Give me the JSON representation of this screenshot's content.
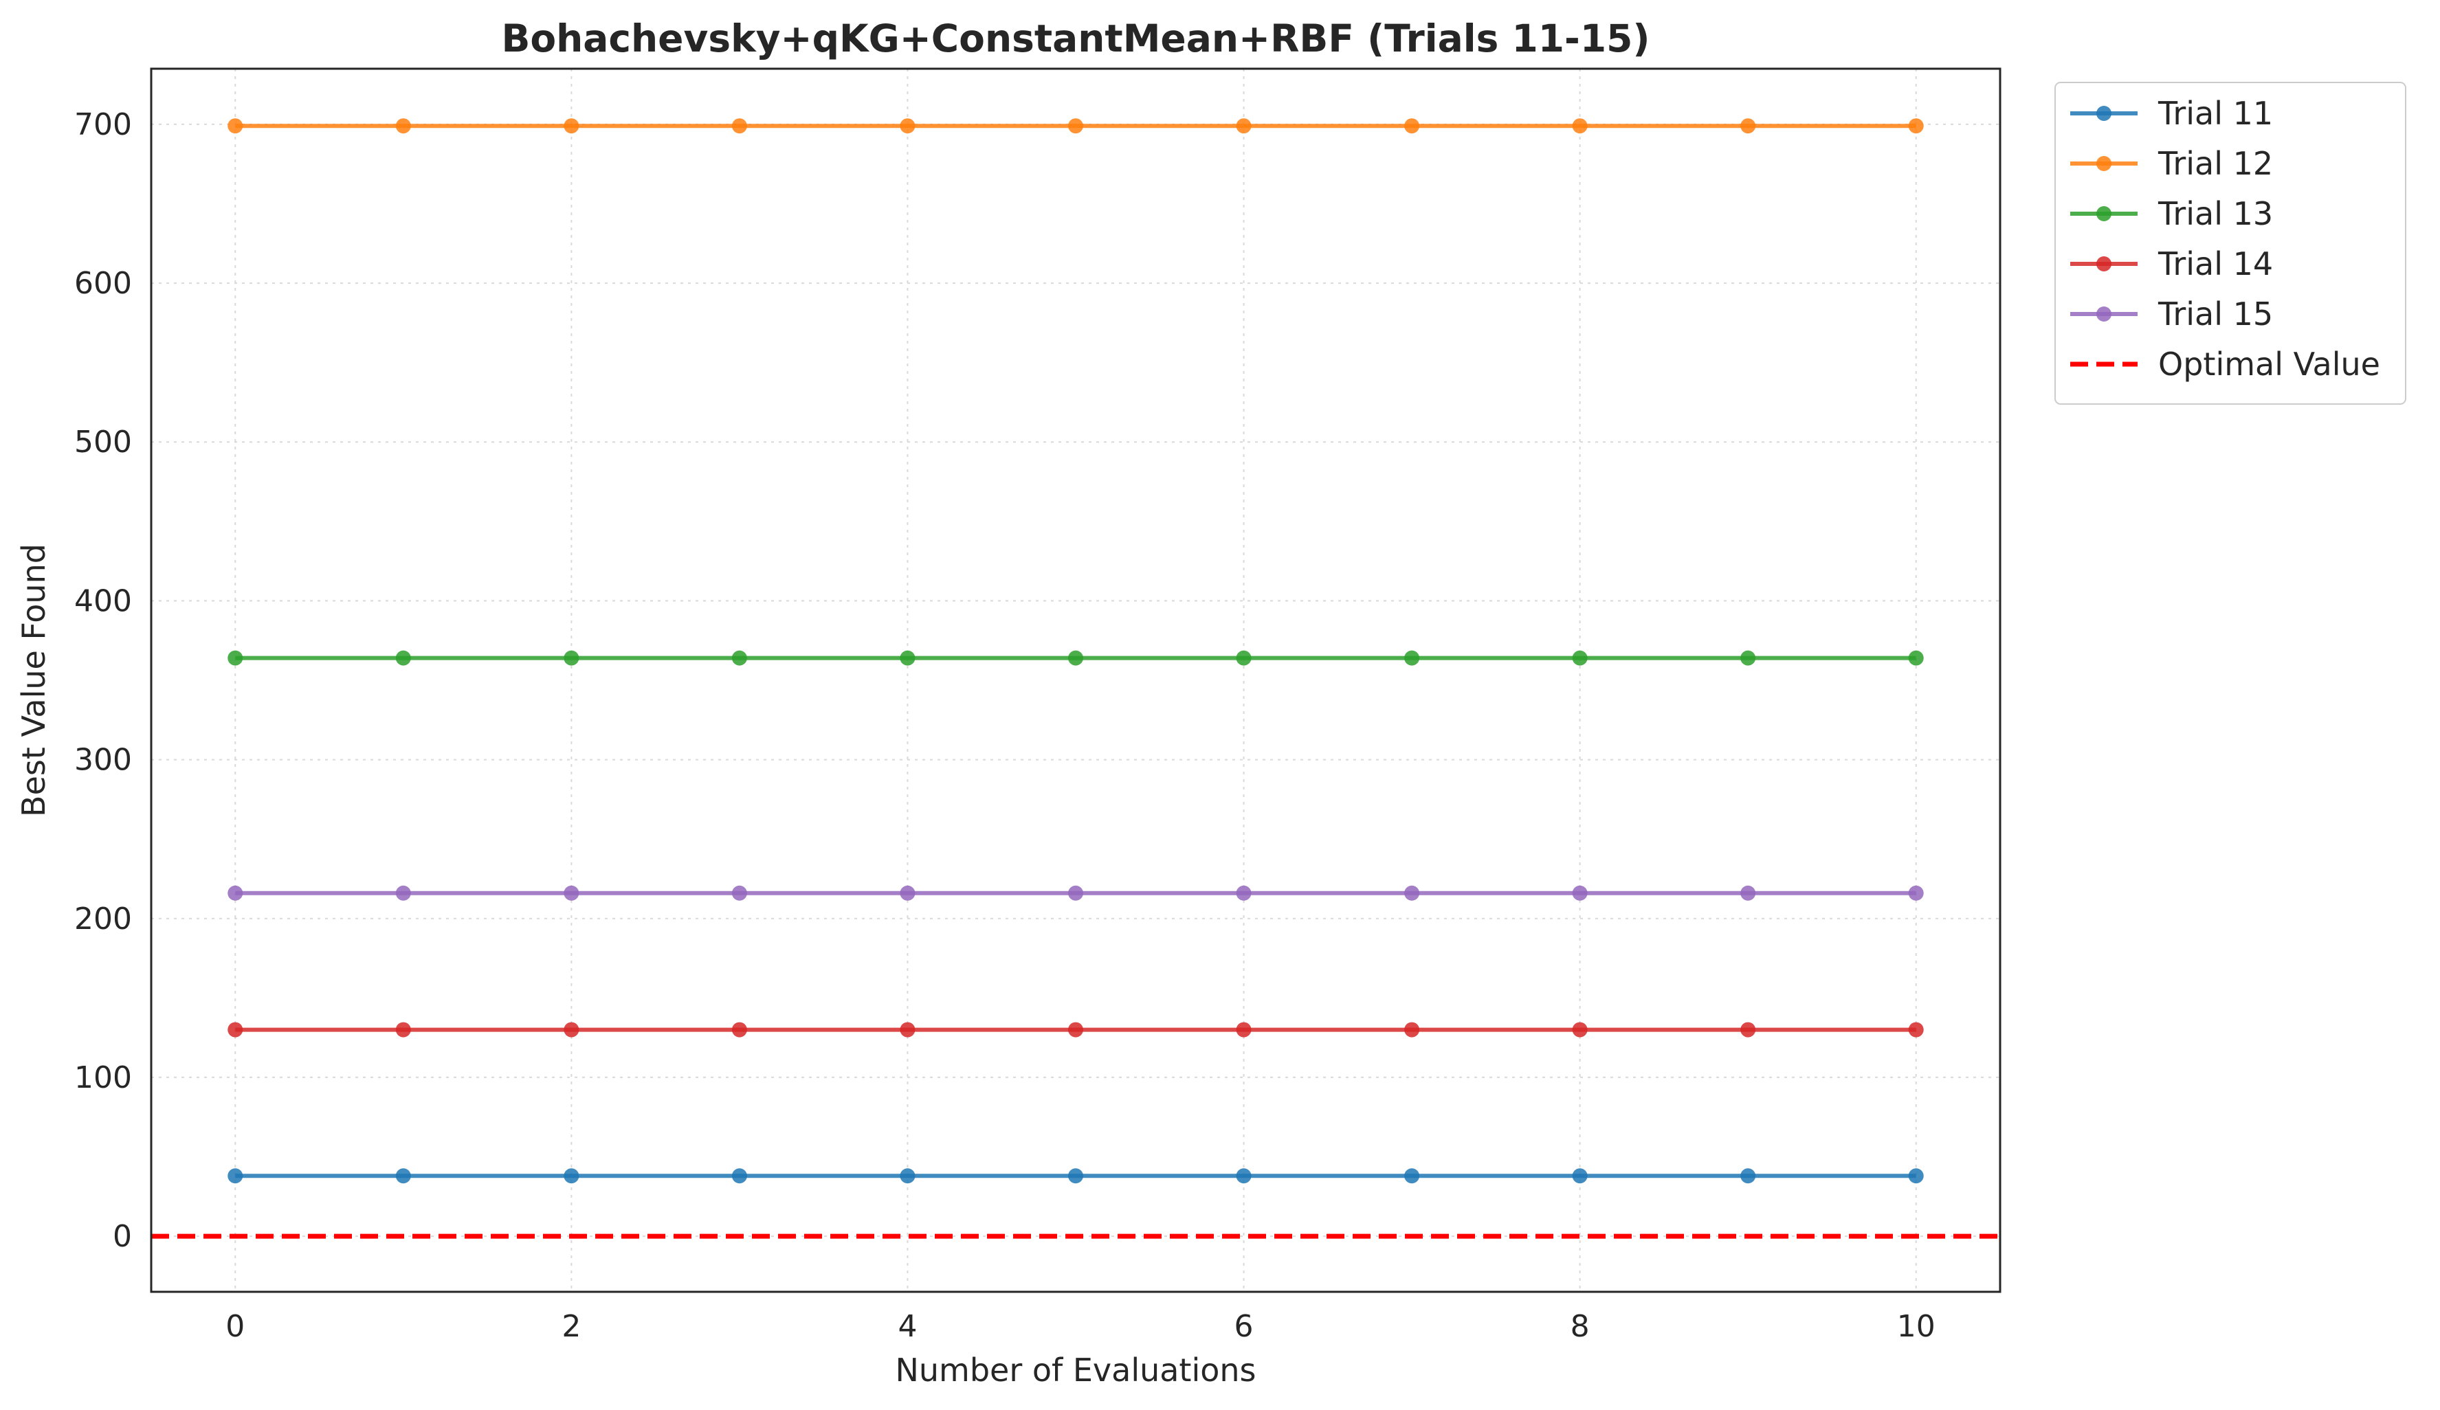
{
  "chart_data": {
    "type": "line",
    "title": "Bohachevsky+qKG+ConstantMean+RBF (Trials 11-15)",
    "xlabel": "Number of Evaluations",
    "ylabel": "Best Value Found",
    "xlim": [
      -0.5,
      10.5
    ],
    "ylim": [
      -35,
      735
    ],
    "xticks": [
      0,
      2,
      4,
      6,
      8,
      10
    ],
    "yticks": [
      0,
      100,
      200,
      300,
      400,
      500,
      600,
      700
    ],
    "grid": true,
    "legend_position": "outside-top-right",
    "x": [
      0,
      1,
      2,
      3,
      4,
      5,
      6,
      7,
      8,
      9,
      10
    ],
    "series": [
      {
        "name": "Trial 11",
        "color": "#1f77b4",
        "values": [
          38,
          38,
          38,
          38,
          38,
          38,
          38,
          38,
          38,
          38,
          38
        ]
      },
      {
        "name": "Trial 12",
        "color": "#ff7f0e",
        "values": [
          699,
          699,
          699,
          699,
          699,
          699,
          699,
          699,
          699,
          699,
          699
        ]
      },
      {
        "name": "Trial 13",
        "color": "#2ca02c",
        "values": [
          364,
          364,
          364,
          364,
          364,
          364,
          364,
          364,
          364,
          364,
          364
        ]
      },
      {
        "name": "Trial 14",
        "color": "#d62728",
        "values": [
          130,
          130,
          130,
          130,
          130,
          130,
          130,
          130,
          130,
          130,
          130
        ]
      },
      {
        "name": "Trial 15",
        "color": "#9467bd",
        "values": [
          216,
          216,
          216,
          216,
          216,
          216,
          216,
          216,
          216,
          216,
          216
        ]
      }
    ],
    "reference_line": {
      "name": "Optimal Value",
      "value": 0,
      "color": "#ff0000",
      "style": "dashed"
    }
  }
}
